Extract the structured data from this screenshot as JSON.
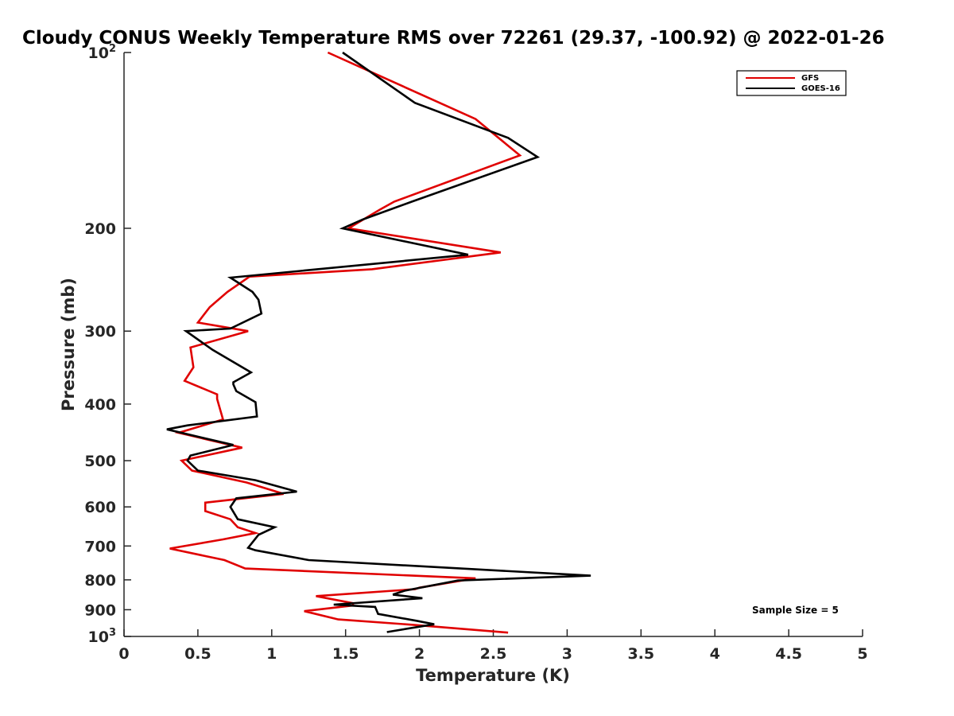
{
  "chart_data": {
    "type": "line",
    "title": "Cloudy CONUS Weekly Temperature RMS over 72261 (29.37, -100.92) @ 2022-01-26",
    "xlabel": "Temperature (K)",
    "ylabel": "Pressure (mb)",
    "xlim": [
      0,
      5
    ],
    "ylim": [
      100,
      1000
    ],
    "y_scale": "log",
    "y_reversed": true,
    "grid": false,
    "legend_position": "top-right",
    "x_ticks": [
      "0",
      "0.5",
      "1",
      "1.5",
      "2",
      "2.5",
      "3",
      "3.5",
      "4",
      "4.5",
      "5"
    ],
    "y_ticks": [
      {
        "value": 100,
        "base": "10",
        "exp": "2"
      },
      {
        "value": 200,
        "base": "200",
        "exp": ""
      },
      {
        "value": 300,
        "base": "300",
        "exp": ""
      },
      {
        "value": 400,
        "base": "400",
        "exp": ""
      },
      {
        "value": 500,
        "base": "500",
        "exp": ""
      },
      {
        "value": 600,
        "base": "600",
        "exp": ""
      },
      {
        "value": 700,
        "base": "700",
        "exp": ""
      },
      {
        "value": 800,
        "base": "800",
        "exp": ""
      },
      {
        "value": 900,
        "base": "900",
        "exp": ""
      },
      {
        "value": 1000,
        "base": "10",
        "exp": "3"
      }
    ],
    "annotation": "Sample Size = 5",
    "series": [
      {
        "name": "GFS",
        "color": "#e00000",
        "points": [
          [
            1.38,
            100
          ],
          [
            2.38,
            130
          ],
          [
            2.68,
            150
          ],
          [
            1.83,
            180
          ],
          [
            1.73,
            186
          ],
          [
            1.52,
            200
          ],
          [
            2.55,
            220
          ],
          [
            1.68,
            235
          ],
          [
            0.85,
            242
          ],
          [
            0.7,
            257
          ],
          [
            0.58,
            273
          ],
          [
            0.5,
            290
          ],
          [
            0.84,
            300
          ],
          [
            0.45,
            320
          ],
          [
            0.47,
            346
          ],
          [
            0.41,
            365
          ],
          [
            0.63,
            385
          ],
          [
            0.63,
            392
          ],
          [
            0.67,
            425
          ],
          [
            0.37,
            448
          ],
          [
            0.8,
            475
          ],
          [
            0.39,
            500
          ],
          [
            0.46,
            520
          ],
          [
            0.83,
            545
          ],
          [
            1.08,
            570
          ],
          [
            0.55,
            590
          ],
          [
            0.55,
            610
          ],
          [
            0.72,
            630
          ],
          [
            0.77,
            650
          ],
          [
            0.89,
            665
          ],
          [
            0.67,
            682
          ],
          [
            0.31,
            707
          ],
          [
            0.68,
            740
          ],
          [
            0.82,
            765
          ],
          [
            2.38,
            795
          ],
          [
            2.0,
            825
          ],
          [
            1.97,
            830
          ],
          [
            1.3,
            853
          ],
          [
            1.55,
            877
          ],
          [
            1.55,
            885
          ],
          [
            1.22,
            905
          ],
          [
            1.45,
            935
          ],
          [
            1.95,
            955
          ],
          [
            2.6,
            985
          ]
        ]
      },
      {
        "name": "GOES-16",
        "color": "#000000",
        "points": [
          [
            1.48,
            100
          ],
          [
            1.97,
            122
          ],
          [
            2.6,
            140
          ],
          [
            2.8,
            151
          ],
          [
            1.95,
            180
          ],
          [
            1.62,
            193
          ],
          [
            1.48,
            200
          ],
          [
            2.33,
            222
          ],
          [
            0.72,
            243
          ],
          [
            0.87,
            257
          ],
          [
            0.91,
            265
          ],
          [
            0.93,
            280
          ],
          [
            0.72,
            297
          ],
          [
            0.42,
            300
          ],
          [
            0.6,
            323
          ],
          [
            0.86,
            353
          ],
          [
            0.74,
            367
          ],
          [
            0.74,
            370
          ],
          [
            0.76,
            380
          ],
          [
            0.89,
            397
          ],
          [
            0.9,
            420
          ],
          [
            0.43,
            435
          ],
          [
            0.29,
            442
          ],
          [
            0.74,
            470
          ],
          [
            0.45,
            490
          ],
          [
            0.43,
            500
          ],
          [
            0.5,
            520
          ],
          [
            0.89,
            540
          ],
          [
            1.17,
            565
          ],
          [
            0.76,
            580
          ],
          [
            0.72,
            600
          ],
          [
            0.77,
            630
          ],
          [
            1.02,
            650
          ],
          [
            0.91,
            670
          ],
          [
            0.84,
            705
          ],
          [
            0.89,
            712
          ],
          [
            1.25,
            740
          ],
          [
            3.16,
            787
          ],
          [
            2.26,
            802
          ],
          [
            1.9,
            835
          ],
          [
            1.82,
            848
          ],
          [
            2.02,
            860
          ],
          [
            1.42,
            882
          ],
          [
            1.7,
            890
          ],
          [
            1.72,
            915
          ],
          [
            1.98,
            940
          ],
          [
            2.1,
            953
          ],
          [
            1.78,
            983
          ]
        ]
      }
    ]
  }
}
